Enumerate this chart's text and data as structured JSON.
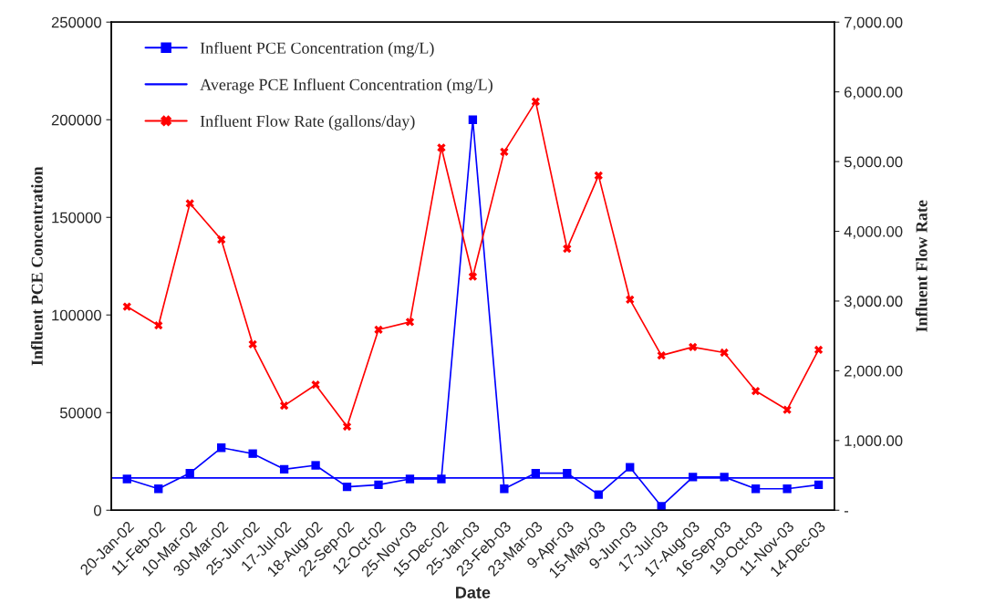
{
  "chart_data": {
    "type": "line",
    "xlabel": "Date",
    "ylabel": "Influent PCE Concentration",
    "y2label": "Influent Flow Rate",
    "categories": [
      "20-Jan-02",
      "11-Feb-02",
      "10-Mar-02",
      "30-Mar-02",
      "25-Jun-02",
      "17-Jul-02",
      "18-Aug-02",
      "22-Sep-02",
      "12-Oct-02",
      "25-Nov-03",
      "15-Dec-02",
      "25-Jan-03",
      "23-Feb-03",
      "23-Mar-03",
      "9-Apr-03",
      "15-May-03",
      "9-Jun-03",
      "17-Jul-03",
      "17-Aug-03",
      "16-Sep-03",
      "19-Oct-03",
      "11-Nov-03",
      "14-Dec-03"
    ],
    "series": [
      {
        "name": "Influent PCE Concentration (mg/L)",
        "color": "#0000ff",
        "marker": "square",
        "values": [
          16000,
          11000,
          19000,
          32000,
          29000,
          21000,
          23000,
          12000,
          13000,
          16000,
          16000,
          200000,
          11000,
          19000,
          19000,
          8000,
          22000,
          2000,
          17000,
          17000,
          11000,
          11000,
          13000
        ]
      },
      {
        "name": "Influent Flow Rate (gallons/day)",
        "color": "#ff0000",
        "marker": "cross",
        "axis": "y2",
        "values": [
          2920,
          2650,
          4400,
          3880,
          2380,
          1500,
          1800,
          1200,
          2590,
          2700,
          5200,
          3350,
          5140,
          5860,
          3750,
          4800,
          3020,
          2220,
          2340,
          2260,
          1710,
          1440,
          2300
        ]
      }
    ],
    "ref_lines": [
      {
        "axis": "y",
        "value": 16500,
        "label": "Average PCE Influent Concentration (mg/L)",
        "color": "#0000ff"
      }
    ],
    "ylim": [
      0,
      250000
    ],
    "yticks": [
      0,
      50000,
      100000,
      150000,
      200000,
      250000
    ],
    "y2lim": [
      0,
      7000
    ],
    "y2ticks": [
      {
        "value": 0,
        "label": "-"
      },
      {
        "value": 1000,
        "label": "1,000.00"
      },
      {
        "value": 2000,
        "label": "2,000.00"
      },
      {
        "value": 3000,
        "label": "3,000.00"
      },
      {
        "value": 4000,
        "label": "4,000.00"
      },
      {
        "value": 5000,
        "label": "5,000.00"
      },
      {
        "value": 6000,
        "label": "6,000.00"
      },
      {
        "value": 7000,
        "label": "7,000.00"
      }
    ],
    "grid": false,
    "legend": "top left"
  }
}
